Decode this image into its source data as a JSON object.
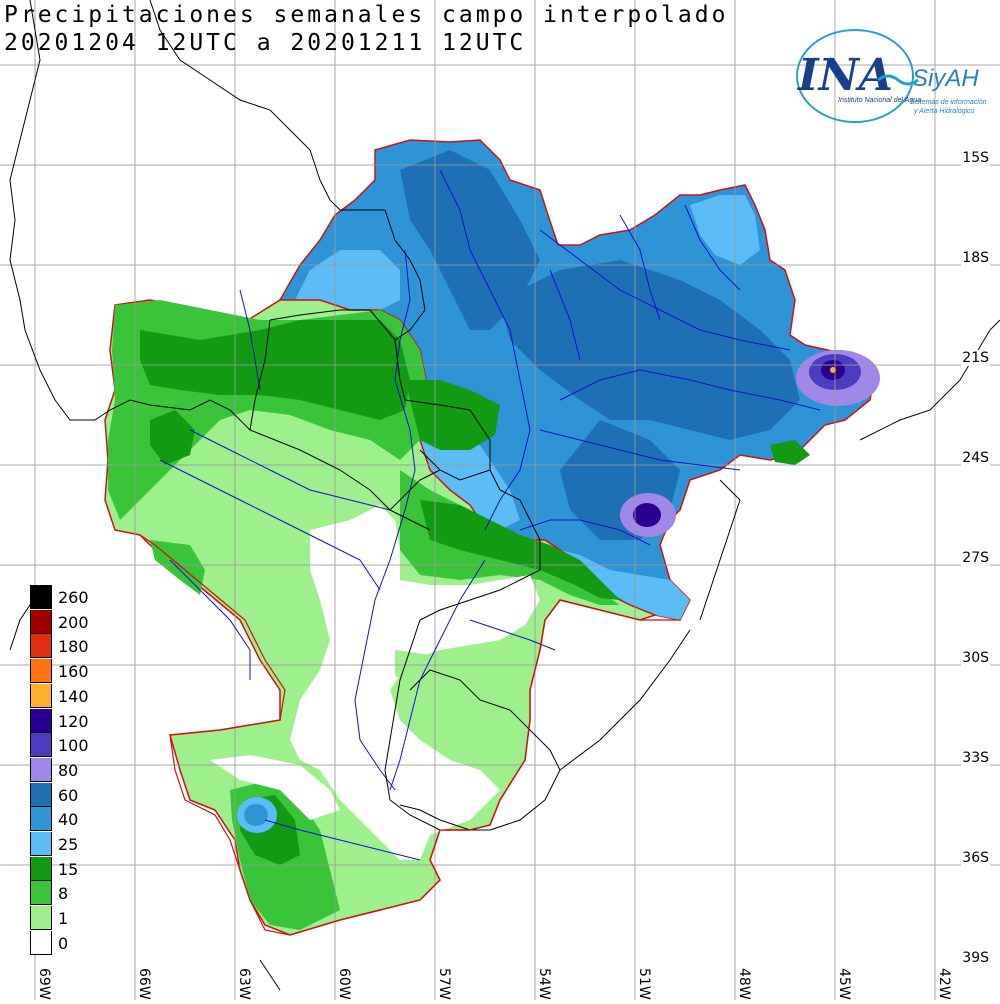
{
  "title": {
    "line1": "Precipitaciones semanales campo interpolado",
    "line2": "20201204 12UTC a 20201211 12UTC"
  },
  "logo": {
    "name": "INA",
    "product": "SiyAH",
    "org": "Instituto Nacional del Agua",
    "subtitle_1": "Sistemas de información",
    "subtitle_2": "y Alerta Hidrológico"
  },
  "lat_labels": [
    "15S",
    "18S",
    "21S",
    "24S",
    "27S",
    "30S",
    "33S",
    "36S",
    "39S"
  ],
  "lon_labels": [
    "69W",
    "66W",
    "63W",
    "60W",
    "57W",
    "54W",
    "51W",
    "48W",
    "45W",
    "42W"
  ],
  "legend": [
    {
      "label": "260",
      "color": "#000000"
    },
    {
      "label": "200",
      "color": "#a00000"
    },
    {
      "label": "180",
      "color": "#e03010"
    },
    {
      "label": "160",
      "color": "#ff7010"
    },
    {
      "label": "140",
      "color": "#ffb030"
    },
    {
      "label": "120",
      "color": "#2a0090"
    },
    {
      "label": "100",
      "color": "#4b3cc0"
    },
    {
      "label": "80",
      "color": "#9f88e8"
    },
    {
      "label": "60",
      "color": "#1f6fb5"
    },
    {
      "label": "40",
      "color": "#2e94d6"
    },
    {
      "label": "25",
      "color": "#5cbcf5"
    },
    {
      "label": "15",
      "color": "#129a12"
    },
    {
      "label": "8",
      "color": "#3ac43a"
    },
    {
      "label": "1",
      "color": "#9ef08c"
    },
    {
      "label": "0",
      "color": "#ffffff"
    }
  ]
}
